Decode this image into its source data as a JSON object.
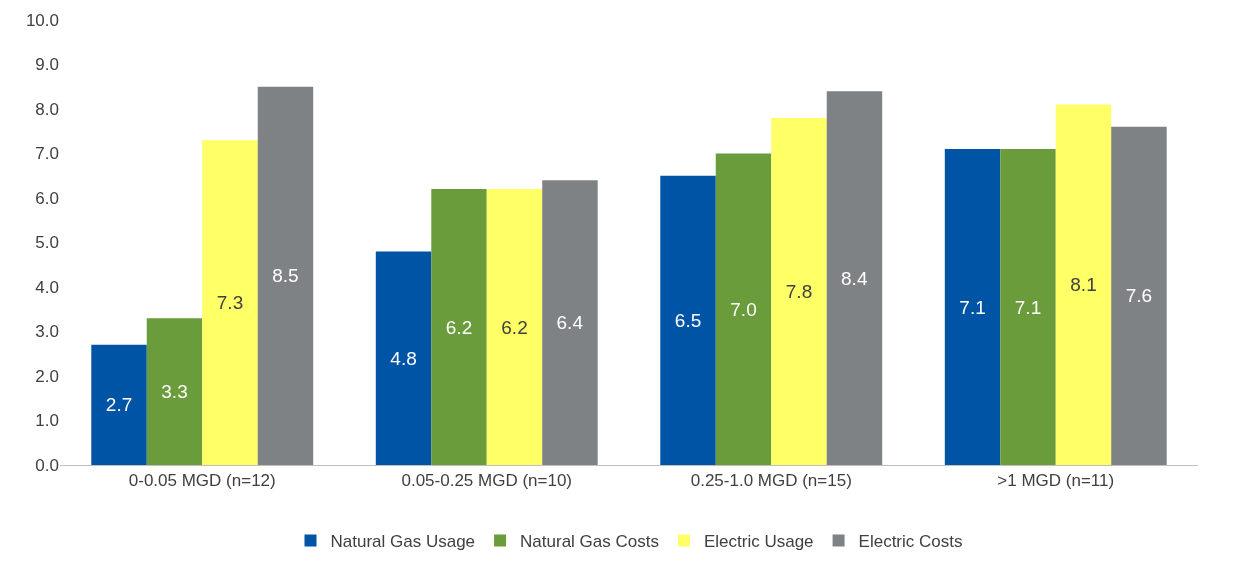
{
  "chart_data": {
    "type": "bar",
    "categories": [
      "0-0.05 MGD (n=12)",
      "0.05-0.25 MGD (n=10)",
      "0.25-1.0 MGD (n=15)",
      ">1 MGD (n=11)"
    ],
    "series": [
      {
        "name": "Natural Gas Usage",
        "color": "#0054a6",
        "values": [
          2.7,
          4.8,
          6.5,
          7.1
        ],
        "value_labels": [
          "2.7",
          "4.8",
          "6.5",
          "7.1"
        ]
      },
      {
        "name": "Natural Gas Costs",
        "color": "#6a9c3c",
        "values": [
          3.3,
          6.2,
          7.0,
          7.1
        ],
        "value_labels": [
          "3.3",
          "6.2",
          "7.0",
          "7.1"
        ]
      },
      {
        "name": "Electric Usage",
        "color": "#ffff66",
        "values": [
          7.3,
          6.2,
          7.8,
          8.1
        ],
        "value_labels": [
          "7.3",
          "6.2",
          "7.8",
          "8.1"
        ]
      },
      {
        "name": "Electric Costs",
        "color": "#7f8285",
        "values": [
          8.5,
          6.4,
          8.4,
          7.6
        ],
        "value_labels": [
          "8.5",
          "6.4",
          "8.4",
          "7.6"
        ]
      }
    ],
    "ylim": [
      0,
      10
    ],
    "yticks": [
      {
        "value": 0,
        "label": "0.0"
      },
      {
        "value": 1,
        "label": "1.0"
      },
      {
        "value": 2,
        "label": "2.0"
      },
      {
        "value": 3,
        "label": "3.0"
      },
      {
        "value": 4,
        "label": "4.0"
      },
      {
        "value": 5,
        "label": "5.0"
      },
      {
        "value": 6,
        "label": "6.0"
      },
      {
        "value": 7,
        "label": "7.0"
      },
      {
        "value": 8,
        "label": "8.0"
      },
      {
        "value": 9,
        "label": "9.0"
      },
      {
        "value": 10,
        "label": "10.0"
      }
    ],
    "legend": "bottom"
  }
}
